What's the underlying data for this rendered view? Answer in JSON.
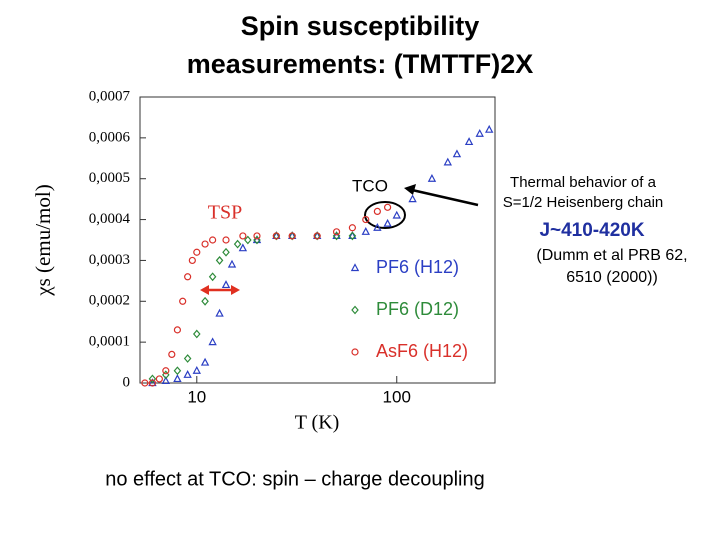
{
  "chart_data": {
    "type": "scatter",
    "title": [
      "Spin susceptibility",
      "measurements: (TMTTF)2X"
    ],
    "x_label": "T (K)",
    "y_label": "χs (emu/mol)",
    "log_x": true,
    "xlim": [
      5.2,
      310
    ],
    "xticks": [
      10,
      100
    ],
    "ylim": [
      0,
      0.0007
    ],
    "yticks": [
      {
        "value": 0,
        "label": "0"
      },
      {
        "value": 0.0001,
        "label": "0,0001"
      },
      {
        "value": 0.0002,
        "label": "0,0002"
      },
      {
        "value": 0.0003,
        "label": "0,0003"
      },
      {
        "value": 0.0004,
        "label": "0,0004"
      },
      {
        "value": 0.0005,
        "label": "0,0005"
      },
      {
        "value": 0.0006,
        "label": "0,0006"
      },
      {
        "value": 0.0007,
        "label": "0,0007"
      }
    ],
    "series": [
      {
        "name": "PF6 (H12)",
        "color": "#2b3fc4",
        "marker": "triangle",
        "x": [
          6,
          7,
          8,
          9,
          10,
          11,
          12,
          13,
          14,
          15,
          17,
          20,
          25,
          30,
          40,
          50,
          60,
          70,
          80,
          90,
          100,
          120,
          150,
          180,
          200,
          230,
          260,
          290
        ],
        "values": [
          0,
          5e-06,
          1e-05,
          2e-05,
          3e-05,
          5e-05,
          0.0001,
          0.00017,
          0.00024,
          0.00029,
          0.00033,
          0.00035,
          0.00036,
          0.00036,
          0.00036,
          0.00036,
          0.00036,
          0.00037,
          0.00038,
          0.00039,
          0.00041,
          0.00045,
          0.0005,
          0.00054,
          0.00056,
          0.00059,
          0.00061,
          0.00062
        ]
      },
      {
        "name": "PF6 (D12)",
        "color": "#2e8b3a",
        "marker": "diamond",
        "x": [
          6,
          7,
          8,
          9,
          10,
          11,
          12,
          13,
          14,
          16,
          18,
          20,
          25,
          30,
          40,
          50,
          60
        ],
        "values": [
          1e-05,
          2e-05,
          3e-05,
          6e-05,
          0.00012,
          0.0002,
          0.00026,
          0.0003,
          0.00032,
          0.00034,
          0.00035,
          0.00035,
          0.00036,
          0.00036,
          0.00036,
          0.00036,
          0.00036
        ]
      },
      {
        "name": "AsF6 (H12)",
        "color": "#d9302a",
        "marker": "circle",
        "x": [
          5.5,
          6,
          6.5,
          7,
          7.5,
          8,
          8.5,
          9,
          9.5,
          10,
          11,
          12,
          14,
          17,
          20,
          25,
          30,
          40,
          50,
          60,
          70,
          80,
          90
        ],
        "values": [
          0,
          0,
          1e-05,
          3e-05,
          7e-05,
          0.00013,
          0.0002,
          0.00026,
          0.0003,
          0.00032,
          0.00034,
          0.00035,
          0.00035,
          0.00036,
          0.00036,
          0.00036,
          0.00036,
          0.00036,
          0.00037,
          0.00038,
          0.0004,
          0.00042,
          0.00043
        ]
      }
    ],
    "annotations": [
      "TCO",
      "TSP",
      "Thermal behavior of a",
      "S=1/2 Heisenberg chain",
      "J~410-420K",
      "(Dumm et al PRB 62,",
      "6510 (2000))",
      "no effect at TCO: spin – charge decoupling"
    ]
  }
}
